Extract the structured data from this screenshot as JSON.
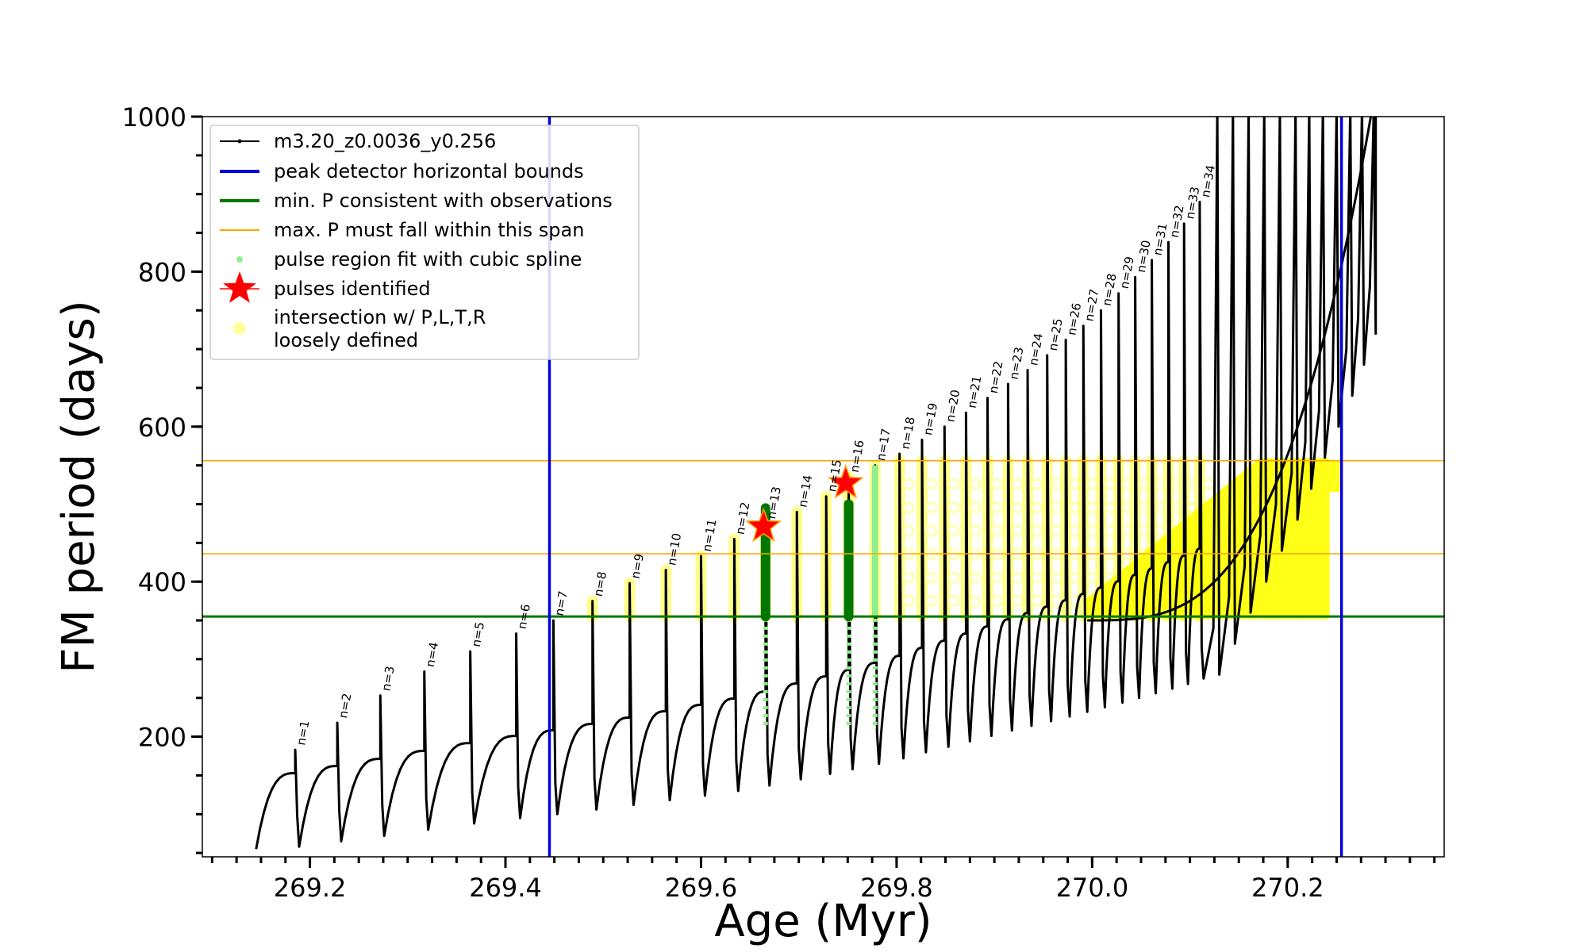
{
  "chart_data": {
    "type": "line",
    "title": "",
    "xlabel": "Age (Myr)",
    "ylabel": "FM period (days)",
    "xlim": [
      269.09,
      270.36
    ],
    "ylim": [
      45,
      1000
    ],
    "xticks": [
      "269.2",
      "269.4",
      "269.6",
      "269.8",
      "270.0",
      "270.2"
    ],
    "xtick_values": [
      269.2,
      269.4,
      269.6,
      269.8,
      270.0,
      270.2
    ],
    "yticks": [
      "200",
      "400",
      "600",
      "800",
      "1000"
    ],
    "ytick_values": [
      200,
      400,
      600,
      800,
      1000
    ],
    "grid": false,
    "legend_position": "top-left",
    "legend": [
      {
        "label": "m3.20_z0.0036_y0.256",
        "style": "line-dot",
        "color": "#000000"
      },
      {
        "label": "peak detector horizontal bounds",
        "style": "line",
        "color": "#0000dd"
      },
      {
        "label": "min. P consistent with observations",
        "style": "line",
        "color": "#007700"
      },
      {
        "label": "max. P must fall within this span",
        "style": "thin-line",
        "color": "#ffa500"
      },
      {
        "label": "pulse region fit with cubic spline",
        "style": "dot",
        "color": "#90ee90"
      },
      {
        "label": "pulses identified",
        "style": "star",
        "color": "#ff0000"
      },
      {
        "label": "intersection w/ P,L,T,R",
        "label2": "loosely defined",
        "style": "circle",
        "color": "#ffff99"
      }
    ],
    "vertical_lines": [
      {
        "x": 269.445,
        "color": "#0000dd"
      },
      {
        "x": 270.255,
        "color": "#0000dd"
      }
    ],
    "horizontal_lines": [
      {
        "y": 355,
        "color": "#007700",
        "width": 3
      },
      {
        "y": 436,
        "color": "#ffa500",
        "width": 1.5
      },
      {
        "y": 556,
        "color": "#ffa500",
        "width": 1.5
      }
    ],
    "pulses": {
      "n": [
        "1",
        "2",
        "3",
        "4",
        "5",
        "6",
        "7",
        "8",
        "9",
        "10",
        "11",
        "12",
        "13",
        "14",
        "15",
        "16",
        "17",
        "18",
        "19",
        "20",
        "21",
        "22",
        "23",
        "24",
        "25",
        "26",
        "27",
        "28",
        "29",
        "30",
        "31",
        "32",
        "33",
        "34"
      ],
      "age": [
        269.185,
        269.228,
        269.272,
        269.317,
        269.364,
        269.411,
        269.449,
        269.489,
        269.527,
        269.564,
        269.6,
        269.634,
        269.666,
        269.698,
        269.728,
        269.751,
        269.778,
        269.803,
        269.826,
        269.849,
        269.871,
        269.893,
        269.914,
        269.934,
        269.954,
        269.973,
        269.991,
        270.009,
        270.027,
        270.044,
        270.061,
        270.078,
        270.094,
        270.11
      ],
      "peak_P": [
        183,
        218,
        253,
        284,
        310,
        333,
        350,
        375,
        398,
        415,
        433,
        455,
        475,
        490,
        510,
        535,
        550,
        565,
        583,
        600,
        618,
        637,
        655,
        673,
        692,
        712,
        730,
        750,
        772,
        793,
        815,
        838,
        862,
        890
      ],
      "trough_P": [
        58,
        65,
        72,
        80,
        88,
        95,
        100,
        106,
        112,
        118,
        124,
        130,
        137,
        145,
        152,
        158,
        165,
        172,
        180,
        187,
        194,
        201,
        208,
        214,
        220,
        226,
        232,
        238,
        244,
        250,
        256,
        262,
        268,
        275
      ]
    },
    "identified_pulses": [
      {
        "age": 269.664,
        "P": 471,
        "n": "13"
      },
      {
        "age": 269.748,
        "P": 527,
        "n": "16"
      }
    ],
    "baseline_start": {
      "age": 269.145,
      "P": 55
    }
  }
}
